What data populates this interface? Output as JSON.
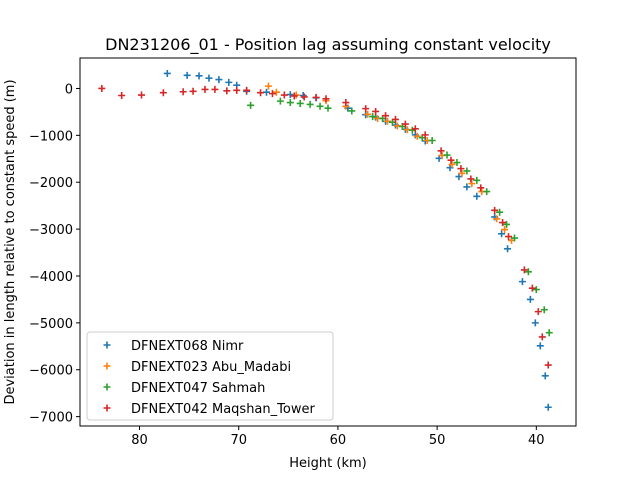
{
  "chart_data": {
    "type": "scatter",
    "title": "DN231206_01 - Position lag assuming constant velocity",
    "xlabel": "Height (km)",
    "ylabel": "Deviation in length relative to constant speed (m)",
    "xlim": [
      86,
      36
    ],
    "ylim": [
      -7200,
      650
    ],
    "x_inverted": true,
    "x_ticks": [
      80,
      70,
      60,
      50,
      40
    ],
    "y_ticks": [
      0,
      -1000,
      -2000,
      -3000,
      -4000,
      -5000,
      -6000,
      -7000
    ],
    "marker": "plus",
    "grid": false,
    "legend_position": "lower-left",
    "series": [
      {
        "name": "DFNEXT068 Nimr",
        "color": "#1f77b4",
        "points": [
          [
            77.2,
            320
          ],
          [
            75.2,
            280
          ],
          [
            74.0,
            270
          ],
          [
            73.0,
            220
          ],
          [
            72.0,
            190
          ],
          [
            71.0,
            130
          ],
          [
            70.2,
            70
          ],
          [
            69.2,
            -60
          ],
          [
            67.2,
            -80
          ],
          [
            64.8,
            -130
          ],
          [
            63.5,
            -150
          ],
          [
            62.2,
            -200
          ],
          [
            59.0,
            -420
          ],
          [
            57.2,
            -560
          ],
          [
            56.2,
            -610
          ],
          [
            55.2,
            -700
          ],
          [
            54.2,
            -780
          ],
          [
            53.2,
            -870
          ],
          [
            52.2,
            -990
          ],
          [
            51.2,
            -1120
          ],
          [
            49.8,
            -1490
          ],
          [
            48.7,
            -1690
          ],
          [
            47.8,
            -1880
          ],
          [
            47.0,
            -2100
          ],
          [
            46.0,
            -2300
          ],
          [
            44.2,
            -2740
          ],
          [
            43.5,
            -3100
          ],
          [
            42.9,
            -3420
          ],
          [
            41.4,
            -4120
          ],
          [
            40.6,
            -4500
          ],
          [
            40.1,
            -5000
          ],
          [
            39.6,
            -5490
          ],
          [
            39.1,
            -6130
          ],
          [
            38.8,
            -6800
          ]
        ]
      },
      {
        "name": "DFNEXT023 Abu_Madabi",
        "color": "#ff7f0e",
        "points": [
          [
            67.0,
            50
          ],
          [
            66.2,
            -80
          ],
          [
            64.2,
            -140
          ],
          [
            61.2,
            -260
          ],
          [
            59.2,
            -380
          ],
          [
            57.0,
            -550
          ],
          [
            56.0,
            -640
          ],
          [
            55.0,
            -700
          ],
          [
            54.0,
            -800
          ],
          [
            53.0,
            -880
          ],
          [
            52.0,
            -1020
          ],
          [
            51.0,
            -1110
          ],
          [
            49.5,
            -1430
          ],
          [
            48.5,
            -1620
          ],
          [
            47.5,
            -1810
          ],
          [
            46.5,
            -2030
          ],
          [
            45.5,
            -2200
          ],
          [
            44.0,
            -2780
          ],
          [
            43.2,
            -3010
          ],
          [
            42.5,
            -3240
          ]
        ]
      },
      {
        "name": "DFNEXT047 Sahmah",
        "color": "#2ca02c",
        "points": [
          [
            68.8,
            -360
          ],
          [
            65.8,
            -270
          ],
          [
            64.8,
            -300
          ],
          [
            63.8,
            -320
          ],
          [
            62.8,
            -340
          ],
          [
            61.8,
            -380
          ],
          [
            61.0,
            -420
          ],
          [
            58.6,
            -480
          ],
          [
            56.5,
            -600
          ],
          [
            55.5,
            -640
          ],
          [
            54.5,
            -720
          ],
          [
            53.5,
            -810
          ],
          [
            52.5,
            -890
          ],
          [
            51.5,
            -1050
          ],
          [
            50.5,
            -1110
          ],
          [
            49.0,
            -1420
          ],
          [
            48.0,
            -1580
          ],
          [
            47.0,
            -1760
          ],
          [
            46.0,
            -1960
          ],
          [
            45.0,
            -2200
          ],
          [
            43.7,
            -2640
          ],
          [
            43.0,
            -2900
          ],
          [
            42.2,
            -3190
          ],
          [
            40.8,
            -3910
          ],
          [
            40.0,
            -4290
          ],
          [
            39.2,
            -4720
          ],
          [
            38.7,
            -5210
          ]
        ]
      },
      {
        "name": "DFNEXT042 Maqshan_Tower",
        "color": "#d62728",
        "points": [
          [
            83.8,
            0
          ],
          [
            81.8,
            -150
          ],
          [
            79.8,
            -140
          ],
          [
            77.6,
            -90
          ],
          [
            75.6,
            -70
          ],
          [
            74.6,
            -60
          ],
          [
            73.4,
            -20
          ],
          [
            72.4,
            -20
          ],
          [
            71.2,
            -50
          ],
          [
            70.2,
            -40
          ],
          [
            69.2,
            -40
          ],
          [
            67.8,
            -90
          ],
          [
            66.6,
            -110
          ],
          [
            65.4,
            -140
          ],
          [
            64.4,
            -160
          ],
          [
            63.4,
            -180
          ],
          [
            62.2,
            -190
          ],
          [
            61.2,
            -220
          ],
          [
            59.2,
            -300
          ],
          [
            57.2,
            -430
          ],
          [
            56.2,
            -490
          ],
          [
            55.2,
            -580
          ],
          [
            54.2,
            -660
          ],
          [
            53.2,
            -760
          ],
          [
            52.2,
            -860
          ],
          [
            51.2,
            -990
          ],
          [
            49.6,
            -1330
          ],
          [
            48.6,
            -1530
          ],
          [
            47.6,
            -1710
          ],
          [
            46.6,
            -1930
          ],
          [
            45.6,
            -2120
          ],
          [
            44.2,
            -2600
          ],
          [
            43.4,
            -2860
          ],
          [
            42.8,
            -3160
          ],
          [
            41.2,
            -3870
          ],
          [
            40.4,
            -4260
          ],
          [
            39.8,
            -4760
          ],
          [
            39.4,
            -5300
          ],
          [
            38.8,
            -5900
          ]
        ]
      }
    ]
  }
}
